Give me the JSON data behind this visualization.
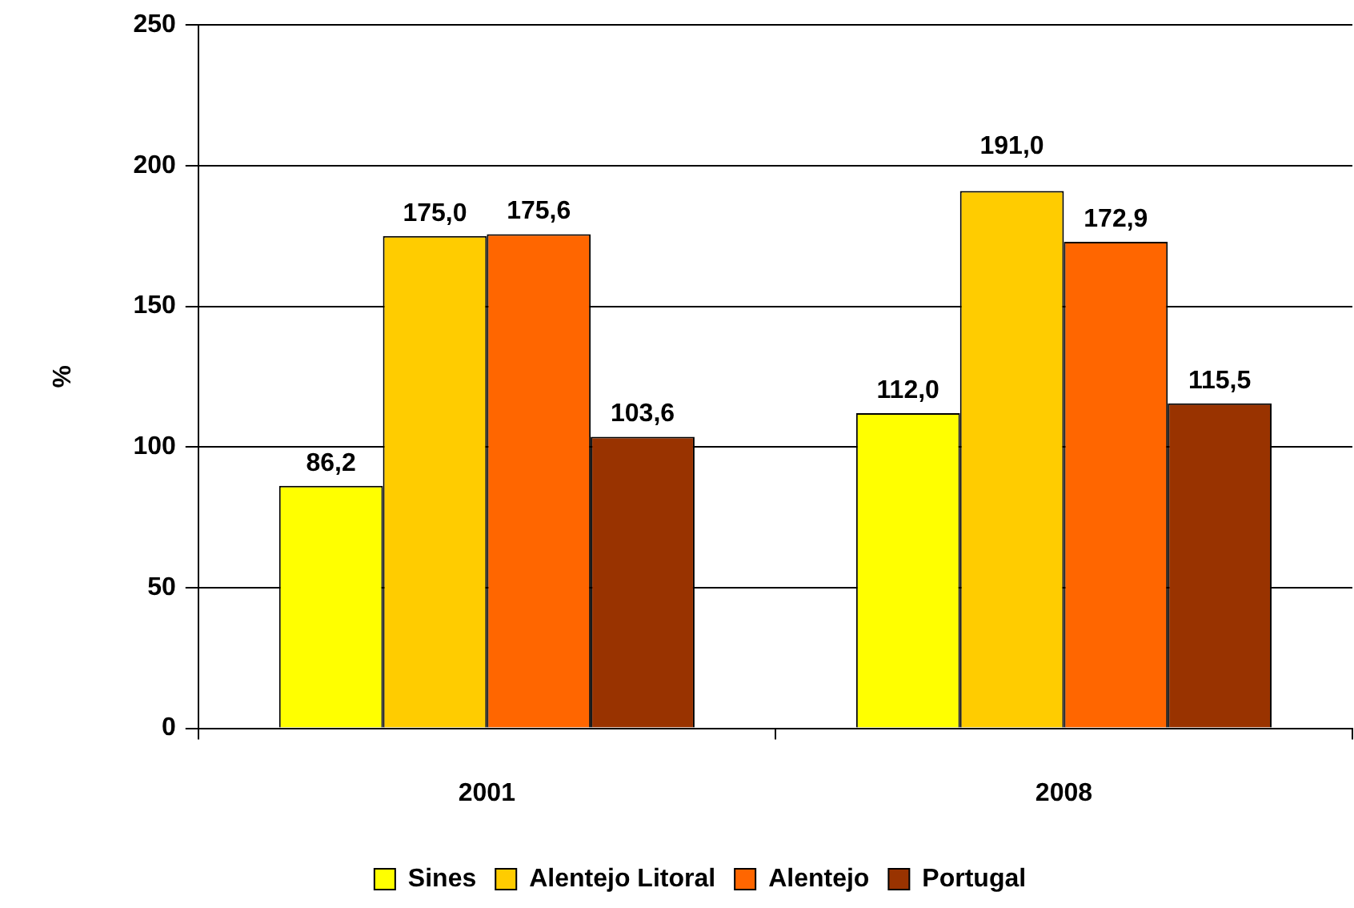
{
  "chart_data": {
    "type": "bar",
    "ylabel": "%",
    "categories": [
      "2001",
      "2008"
    ],
    "series": [
      {
        "name": "Sines",
        "color": "#ffff00",
        "values": [
          86.2,
          112.0
        ],
        "value_labels": [
          "86,2",
          "112,0"
        ]
      },
      {
        "name": "Alentejo Litoral",
        "color": "#ffcc00",
        "values": [
          175.0,
          191.0
        ],
        "value_labels": [
          "175,0",
          "191,0"
        ]
      },
      {
        "name": "Alentejo",
        "color": "#ff6600",
        "values": [
          175.6,
          172.9
        ],
        "value_labels": [
          "175,6",
          "172,9"
        ]
      },
      {
        "name": "Portugal",
        "color": "#993300",
        "values": [
          103.6,
          115.5
        ],
        "value_labels": [
          "103,6",
          "115,5"
        ]
      }
    ],
    "ylim": [
      0,
      250
    ],
    "yticks": [
      0,
      50,
      100,
      150,
      200,
      250
    ],
    "grid": "y",
    "legend": "bottom"
  }
}
